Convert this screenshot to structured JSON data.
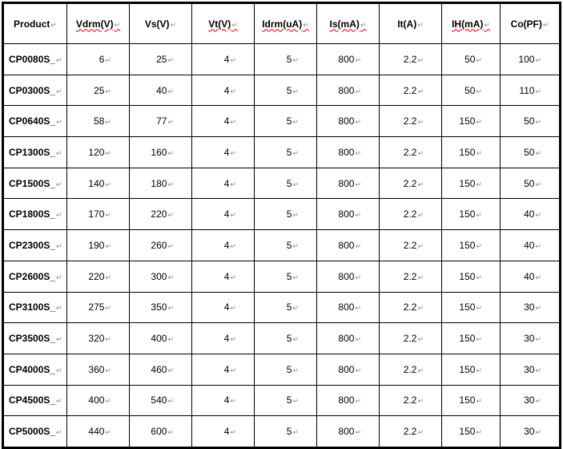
{
  "table": {
    "headers": [
      "Product",
      "Vdrm(V)",
      "Vs(V)",
      "Vt(V)",
      "Idrm(uA)",
      "Is(mA)",
      "It(A)",
      "IH(mA)",
      "Co(PF)"
    ],
    "spellcheck_flagged": [
      false,
      true,
      false,
      true,
      true,
      true,
      false,
      true,
      false
    ],
    "rows": [
      [
        "CP0080S_",
        "6",
        "25",
        "4",
        "5",
        "800",
        "2.2",
        "50",
        "100"
      ],
      [
        "CP0300S_",
        "25",
        "40",
        "4",
        "5",
        "800",
        "2.2",
        "50",
        "110"
      ],
      [
        "CP0640S_",
        "58",
        "77",
        "4",
        "5",
        "800",
        "2.2",
        "150",
        "50"
      ],
      [
        "CP1300S_",
        "120",
        "160",
        "4",
        "5",
        "800",
        "2.2",
        "150",
        "50"
      ],
      [
        "CP1500S_",
        "140",
        "180",
        "4",
        "5",
        "800",
        "2.2",
        "150",
        "50"
      ],
      [
        "CP1800S_",
        "170",
        "220",
        "4",
        "5",
        "800",
        "2.2",
        "150",
        "40"
      ],
      [
        "CP2300S_",
        "190",
        "260",
        "4",
        "5",
        "800",
        "2.2",
        "150",
        "40"
      ],
      [
        "CP2600S_",
        "220",
        "300",
        "4",
        "5",
        "800",
        "2.2",
        "150",
        "40"
      ],
      [
        "CP3100S_",
        "275",
        "350",
        "4",
        "5",
        "800",
        "2.2",
        "150",
        "30"
      ],
      [
        "CP3500S_",
        "320",
        "400",
        "4",
        "5",
        "800",
        "2.2",
        "150",
        "30"
      ],
      [
        "CP4000S_",
        "360",
        "460",
        "4",
        "5",
        "800",
        "2.2",
        "150",
        "30"
      ],
      [
        "CP4500S_",
        "400",
        "540",
        "4",
        "5",
        "800",
        "2.2",
        "150",
        "30"
      ],
      [
        "CP5000S_",
        "440",
        "600",
        "4",
        "5",
        "800",
        "2.2",
        "150",
        "30"
      ]
    ]
  }
}
